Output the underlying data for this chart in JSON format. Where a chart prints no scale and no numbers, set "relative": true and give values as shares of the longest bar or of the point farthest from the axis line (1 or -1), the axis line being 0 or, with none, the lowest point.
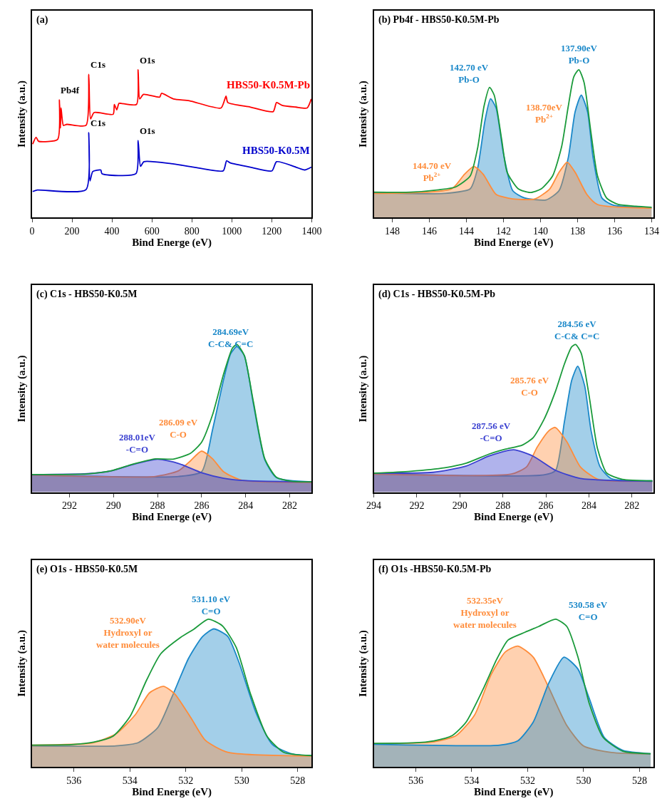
{
  "chart_data": [
    {
      "type": "line",
      "title": "(a)",
      "xlabel": "Bind Energe (eV)",
      "ylabel": "Intensity (a.u.)",
      "relative": true,
      "xlim": [
        0,
        1400
      ],
      "xticks": [
        0,
        200,
        400,
        600,
        800,
        1000,
        1200,
        1400
      ],
      "series": [
        {
          "name": "HBS50-K0.5M-Pb",
          "color": "#ff0000",
          "x": [
            3,
            20,
            32,
            128,
            137,
            142,
            145,
            157,
            174,
            270,
            284,
            293,
            310,
            406,
            412,
            424,
            435,
            446,
            523,
            531,
            539,
            558,
            639,
            648,
            708,
            787,
            946,
            971,
            980,
            1093,
            1207,
            1224,
            1252,
            1321,
            1377,
            1398
          ],
          "values": [
            0.496,
            0.543,
            0.516,
            0.528,
            0.796,
            0.605,
            0.741,
            0.623,
            0.63,
            0.623,
            0.969,
            0.667,
            0.71,
            0.698,
            0.765,
            0.728,
            0.772,
            0.772,
            0.765,
            1.0,
            0.802,
            0.833,
            0.815,
            0.84,
            0.802,
            0.79,
            0.741,
            0.821,
            0.778,
            0.747,
            0.716,
            0.778,
            0.759,
            0.747,
            0.741,
            0.802
          ]
        },
        {
          "name": "HBS50-K0.5M",
          "color": "#0000cc",
          "x": [
            3,
            26,
            270,
            284,
            290,
            304,
            344,
            350,
            520,
            531,
            543,
            560,
            696,
            810,
            957,
            974,
            991,
            1093,
            1201,
            1224,
            1321,
            1366,
            1398
          ],
          "values": [
            0.175,
            0.185,
            0.188,
            0.574,
            0.247,
            0.311,
            0.321,
            0.296,
            0.296,
            0.521,
            0.346,
            0.377,
            0.364,
            0.34,
            0.315,
            0.383,
            0.37,
            0.34,
            0.315,
            0.377,
            0.34,
            0.321,
            0.34
          ]
        }
      ],
      "annotations": [
        {
          "text": "Pb4f",
          "x": 137,
          "y": 0.796
        },
        {
          "text": "C1s",
          "x": 284,
          "y": 0.969
        },
        {
          "text": "O1s",
          "x": 531,
          "y": 1.0
        },
        {
          "text": "C1s",
          "x": 284,
          "y": 0.574
        },
        {
          "text": "O1s",
          "x": 531,
          "y": 0.521
        }
      ]
    },
    {
      "type": "area",
      "title": "(b) Pb4f - HBS50-K0.5M-Pb",
      "xlabel": "Bind Energe (eV)",
      "ylabel": "Intensity (a.u.)",
      "relative": true,
      "xlim": [
        149,
        133.9
      ],
      "xticks": [
        148,
        146,
        144,
        142,
        140,
        138,
        136,
        134
      ],
      "series": [
        {
          "type": "line",
          "color": "#1a9a3a",
          "x": [
            149,
            147,
            145.5,
            144.6,
            143.8,
            143.4,
            143.05,
            142.75,
            142.5,
            142.1,
            141.8,
            141.2,
            140.56,
            139.96,
            139.35,
            138.86,
            138.5,
            138.2,
            137.93,
            137.65,
            137.28,
            136.92,
            136.43,
            135.8,
            134.85,
            134
          ],
          "values": [
            0.171,
            0.171,
            0.187,
            0.205,
            0.28,
            0.467,
            0.753,
            0.88,
            0.828,
            0.529,
            0.305,
            0.193,
            0.168,
            0.193,
            0.28,
            0.479,
            0.753,
            0.953,
            1.0,
            0.915,
            0.579,
            0.28,
            0.131,
            0.087,
            0.075,
            0.068
          ]
        },
        {
          "color": "#1a88c9",
          "x": [
            149,
            145.2,
            143.8,
            143.4,
            143,
            142.7,
            142.4,
            142,
            141.5,
            140.9,
            139.7,
            139,
            138.5,
            138.13,
            137.8,
            137.46,
            137.16,
            136.68,
            136.07,
            134
          ],
          "values": [
            0.166,
            0.162,
            0.193,
            0.33,
            0.654,
            0.803,
            0.741,
            0.43,
            0.181,
            0.133,
            0.118,
            0.181,
            0.405,
            0.716,
            0.828,
            0.716,
            0.405,
            0.131,
            0.083,
            0.066
          ]
        },
        {
          "color": "#ff8c3a",
          "x": [
            149,
            144.8,
            144.1,
            143.6,
            143.1,
            142.4,
            141.5,
            140.3,
            139.5,
            139,
            138.56,
            138.13,
            137.5,
            136.92,
            134
          ],
          "values": [
            0.162,
            0.193,
            0.293,
            0.345,
            0.293,
            0.156,
            0.125,
            0.125,
            0.193,
            0.305,
            0.374,
            0.305,
            0.156,
            0.087,
            0.062
          ]
        }
      ],
      "annotations": [
        {
          "text": "142.70 eV\nPb-O",
          "x": 142.7,
          "y": 0.87
        },
        {
          "text": "137.90eV\nPb-O",
          "x": 137.9,
          "y": 1.0
        },
        {
          "text": "144.70 eV\nPb$^{2+}$",
          "x": 144.7,
          "y": 0.203
        },
        {
          "text": "138.70eV\nPb$^{2+}$",
          "x": 138.7,
          "y": 0.6
        }
      ]
    },
    {
      "type": "area",
      "title": "(c) C1s - HBS50-K0.5M",
      "xlabel": "Bind Energe (eV)",
      "ylabel": "Intensity (a.u.)",
      "relative": true,
      "xlim": [
        293.7,
        281
      ],
      "xticks": [
        292,
        290,
        288,
        286,
        284,
        282
      ],
      "series": [
        {
          "type": "line",
          "color": "#1a9a3a",
          "x": [
            293.7,
            291.2,
            290.1,
            289.1,
            288.1,
            287.3,
            286.5,
            286,
            285.5,
            285,
            284.6,
            284.4,
            284.06,
            283.65,
            283.13,
            282.6,
            281.9,
            281
          ],
          "values": [
            0.119,
            0.123,
            0.144,
            0.19,
            0.225,
            0.223,
            0.263,
            0.338,
            0.525,
            0.8,
            0.975,
            1.0,
            0.925,
            0.613,
            0.225,
            0.1,
            0.073,
            0.069
          ]
        },
        {
          "color": "#1a88c9",
          "x": [
            293.7,
            287.05,
            286,
            285.5,
            285,
            284.68,
            284.4,
            284.06,
            283.65,
            283.13,
            282.6,
            281
          ],
          "values": [
            0.115,
            0.106,
            0.1375,
            0.425,
            0.7625,
            0.9375,
            0.985,
            0.925,
            0.6,
            0.219,
            0.0975,
            0.069
          ]
        },
        {
          "color": "#ff8c3a",
          "x": [
            293.7,
            288.1,
            287.05,
            286.5,
            286,
            285.5,
            285,
            284.2,
            281
          ],
          "values": [
            0.115,
            0.106,
            0.144,
            0.2125,
            0.2775,
            0.225,
            0.1375,
            0.081,
            0.065
          ]
        },
        {
          "color": "#3a40d0",
          "x": [
            293.7,
            291.2,
            290.1,
            289.1,
            288,
            287.05,
            286,
            285,
            284,
            281
          ],
          "values": [
            0.119,
            0.125,
            0.144,
            0.1875,
            0.2225,
            0.194,
            0.131,
            0.094,
            0.0775,
            0.069
          ]
        }
      ],
      "annotations": [
        {
          "text": "284.69eV\nC-C& C=C",
          "x": 284.69,
          "y": 0.94
        },
        {
          "text": "286.09 eV\nC-O",
          "x": 286.09,
          "y": 0.325
        },
        {
          "text": "288.01eV\n-C=O",
          "x": 288.01,
          "y": 0.225
        }
      ]
    },
    {
      "type": "area",
      "title": "(d) C1s - HBS50-K0.5M-Pb",
      "xlabel": "Bind Energe (eV)",
      "ylabel": "Intensity (a.u.)",
      "relative": true,
      "xlim": [
        294,
        281
      ],
      "xticks": [
        294,
        292,
        290,
        288,
        286,
        284,
        282
      ],
      "series": [
        {
          "type": "line",
          "color": "#1a9a3a",
          "x": [
            294,
            292.3,
            290.7,
            289.7,
            288.65,
            287.9,
            287.1,
            286.6,
            286.1,
            285.55,
            285.14,
            284.8,
            284.62,
            284.36,
            284,
            283.6,
            283.17,
            282.45,
            281.05
          ],
          "values": [
            0.128,
            0.141,
            0.165,
            0.196,
            0.257,
            0.29,
            0.318,
            0.367,
            0.489,
            0.685,
            0.868,
            0.984,
            1.0,
            0.941,
            0.66,
            0.293,
            0.128,
            0.086,
            0.076
          ]
        },
        {
          "color": "#1a88c9",
          "x": [
            294,
            286.1,
            285.55,
            285.14,
            284.8,
            284.52,
            284.2,
            283.9,
            283.48,
            282.97,
            281.05
          ],
          "values": [
            0.125,
            0.116,
            0.147,
            0.477,
            0.758,
            0.853,
            0.721,
            0.416,
            0.171,
            0.092,
            0.076
          ]
        },
        {
          "color": "#ff8c3a",
          "x": [
            294,
            287.6,
            286.9,
            286.4,
            285.86,
            285.57,
            285.03,
            284.4,
            283.6,
            281.05
          ],
          "values": [
            0.122,
            0.122,
            0.171,
            0.306,
            0.416,
            0.438,
            0.342,
            0.171,
            0.088,
            0.073
          ]
        },
        {
          "color": "#3a40d0",
          "x": [
            294,
            291.24,
            289.7,
            288.65,
            287.5,
            286.6,
            285.55,
            284.4,
            282.97,
            281.05
          ],
          "values": [
            0.128,
            0.134,
            0.177,
            0.244,
            0.287,
            0.244,
            0.147,
            0.092,
            0.079,
            0.073
          ]
        }
      ],
      "annotations": [
        {
          "text": "284.56 eV\nC-C& C=C",
          "x": 284.56,
          "y": 0.99
        },
        {
          "text": "285.76 eV\nC-O",
          "x": 285.76,
          "y": 0.61
        },
        {
          "text": "287.56 eV\n-C=O",
          "x": 287.56,
          "y": 0.3
        }
      ]
    },
    {
      "type": "area",
      "title": "(e) O1s - HBS50-K0.5M",
      "xlabel": "Bind Energe (eV)",
      "ylabel": "Intensity (a.u.)",
      "relative": true,
      "xlim": [
        537.5,
        527.5
      ],
      "xticks": [
        536,
        534,
        532,
        530,
        528
      ],
      "series": [
        {
          "type": "line",
          "color": "#1a9a3a",
          "x": [
            537.5,
            536.1,
            535.3,
            534.6,
            534,
            533.4,
            532.9,
            532.2,
            531.7,
            531.2,
            530.7,
            530.2,
            529.7,
            529.1,
            528.5,
            527.5
          ],
          "values": [
            0.147,
            0.15,
            0.167,
            0.208,
            0.34,
            0.589,
            0.765,
            0.875,
            0.934,
            1.0,
            0.956,
            0.809,
            0.501,
            0.208,
            0.098,
            0.076
          ]
        },
        {
          "color": "#1a88c9",
          "x": [
            537.5,
            534.5,
            533.7,
            533,
            532.5,
            531.9,
            531.4,
            531,
            530.5,
            530.1,
            529.5,
            528.9,
            528.2,
            527.5
          ],
          "values": [
            0.142,
            0.142,
            0.164,
            0.267,
            0.472,
            0.736,
            0.883,
            0.934,
            0.883,
            0.707,
            0.37,
            0.15,
            0.088,
            0.076
          ]
        },
        {
          "color": "#ff8c3a",
          "x": [
            537.5,
            535.3,
            534.5,
            533.8,
            533.3,
            532.8,
            532.4,
            531.8,
            531.3,
            530.5,
            527.5
          ],
          "values": [
            0.147,
            0.164,
            0.223,
            0.355,
            0.501,
            0.545,
            0.494,
            0.326,
            0.179,
            0.098,
            0.073
          ]
        }
      ],
      "annotations": [
        {
          "text": "531.10 eV\nC=O",
          "x": 531.1,
          "y": 0.99
        },
        {
          "text": "532.90eV\nHydroxyl or\nwater molecules",
          "x": 532.9,
          "y": 0.765
        }
      ]
    },
    {
      "type": "area",
      "title": "(f) O1s -HBS50-K0.5M-Pb",
      "xlabel": "Bind Energe (eV)",
      "ylabel": "Intensity (a.u.)",
      "relative": true,
      "xlim": [
        537.5,
        527.5
      ],
      "xticks": [
        536,
        534,
        532,
        530,
        528
      ],
      "series": [
        {
          "type": "line",
          "color": "#1a9a3a",
          "x": [
            537.5,
            536.1,
            535.35,
            534.7,
            534.2,
            533.6,
            533.1,
            532.7,
            532.1,
            531.6,
            531,
            530.6,
            530.2,
            529.8,
            529.3,
            528.6,
            527.6
          ],
          "values": [
            0.159,
            0.162,
            0.176,
            0.211,
            0.303,
            0.523,
            0.731,
            0.859,
            0.911,
            0.951,
            1.0,
            0.951,
            0.743,
            0.431,
            0.199,
            0.106,
            0.089
          ]
        },
        {
          "color": "#ff8c3a",
          "x": [
            537.5,
            535.35,
            534.56,
            533.9,
            533.3,
            532.8,
            532.35,
            531.8,
            531.24,
            530.6,
            530,
            529,
            527.6
          ],
          "values": [
            0.156,
            0.17,
            0.211,
            0.35,
            0.627,
            0.778,
            0.818,
            0.743,
            0.535,
            0.28,
            0.141,
            0.097,
            0.086
          ]
        },
        {
          "color": "#1a88c9",
          "x": [
            537.5,
            533,
            532.35,
            531.8,
            531.24,
            530.7,
            530.2,
            529.8,
            529.26,
            528.6,
            527.6
          ],
          "values": [
            0.153,
            0.147,
            0.176,
            0.303,
            0.569,
            0.743,
            0.662,
            0.465,
            0.199,
            0.112,
            0.089
          ]
        }
      ],
      "annotations": [
        {
          "text": "532.35eV\nHydroxyl or\nwater molecules",
          "x": 532.35,
          "y": 0.9
        },
        {
          "text": "530.58 eV\nC=O",
          "x": 530.58,
          "y": 0.95
        }
      ]
    }
  ]
}
